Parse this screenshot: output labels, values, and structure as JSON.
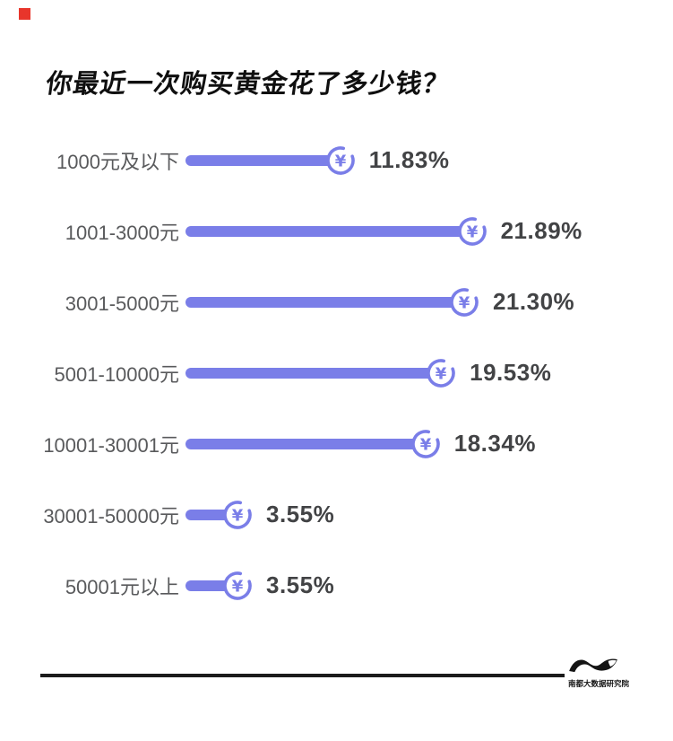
{
  "page": {
    "background": "#ffffff"
  },
  "decor": {
    "red_square_color": "#e8352b"
  },
  "header": {
    "title": "你最近一次购买黄金花了多少钱？"
  },
  "chart_data": {
    "type": "bar",
    "orientation": "horizontal",
    "title": "你最近一次购买黄金花了多少钱？",
    "categories": [
      "1000元及以下",
      "1001-3000元",
      "3001-5000元",
      "5001-10000元",
      "10001-30001元",
      "30001-50000元",
      "50001元以上"
    ],
    "values": [
      11.83,
      21.89,
      21.3,
      19.53,
      18.34,
      3.55,
      3.55
    ],
    "value_labels": [
      "11.83%",
      "21.89%",
      "21.30%",
      "19.53%",
      "18.34%",
      "3.55%",
      "3.55%"
    ],
    "bar_color": "#7a7ee8",
    "bar_icon": "yen-coin-icon",
    "unit": "%",
    "xlim": [
      0,
      25
    ],
    "grid": false,
    "legend": false
  },
  "footer": {
    "logo_text": "南都大数据研究院"
  }
}
